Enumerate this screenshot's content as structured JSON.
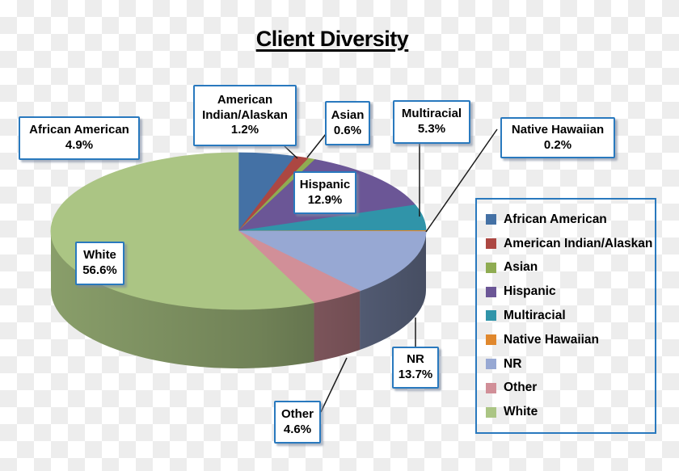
{
  "title": "Client Diversity",
  "chart_data": {
    "type": "pie",
    "title": "Client Diversity",
    "unit": "%",
    "effect": "3d",
    "order": "clockwise-from-12-oclock",
    "legend_position": "right",
    "slices": [
      {
        "label": "African American",
        "value": 4.9,
        "color": "#4471a5"
      },
      {
        "label": "American Indian/Alaskan",
        "value": 1.2,
        "color": "#ac4742"
      },
      {
        "label": "Asian",
        "value": 0.6,
        "color": "#8fac52"
      },
      {
        "label": "Hispanic",
        "value": 12.9,
        "color": "#6b5696"
      },
      {
        "label": "Multiracial",
        "value": 5.3,
        "color": "#3094a9"
      },
      {
        "label": "Native Hawaiian",
        "value": 0.2,
        "color": "#e0882e"
      },
      {
        "label": "NR",
        "value": 13.7,
        "color": "#97a8d3"
      },
      {
        "label": "Other",
        "value": 4.6,
        "color": "#d18f98"
      },
      {
        "label": "White",
        "value": 56.6,
        "color": "#abc584"
      }
    ]
  },
  "callouts": [
    {
      "name": "african-american",
      "lines": [
        "African American",
        "4.9%"
      ]
    },
    {
      "name": "american-indian-alaskan",
      "lines": [
        "American",
        "Indian/Alaskan",
        "1.2%"
      ]
    },
    {
      "name": "asian",
      "lines": [
        "Asian",
        "0.6%"
      ]
    },
    {
      "name": "multiracial",
      "lines": [
        "Multiracial",
        "5.3%"
      ]
    },
    {
      "name": "native-hawaiian",
      "lines": [
        "Native Hawaiian",
        "0.2%"
      ]
    },
    {
      "name": "hispanic",
      "lines": [
        "Hispanic",
        "12.9%"
      ]
    },
    {
      "name": "white",
      "lines": [
        "White",
        "56.6%"
      ]
    },
    {
      "name": "nr",
      "lines": [
        "NR",
        "13.7%"
      ]
    },
    {
      "name": "other",
      "lines": [
        "Other",
        "4.6%"
      ]
    }
  ],
  "colors": {
    "callout_border": "#2979be",
    "legend_border": "#2979be",
    "leader_line": "#1a1a1a",
    "checker_gray": "#ededed",
    "checker_white": "#ffffff"
  }
}
